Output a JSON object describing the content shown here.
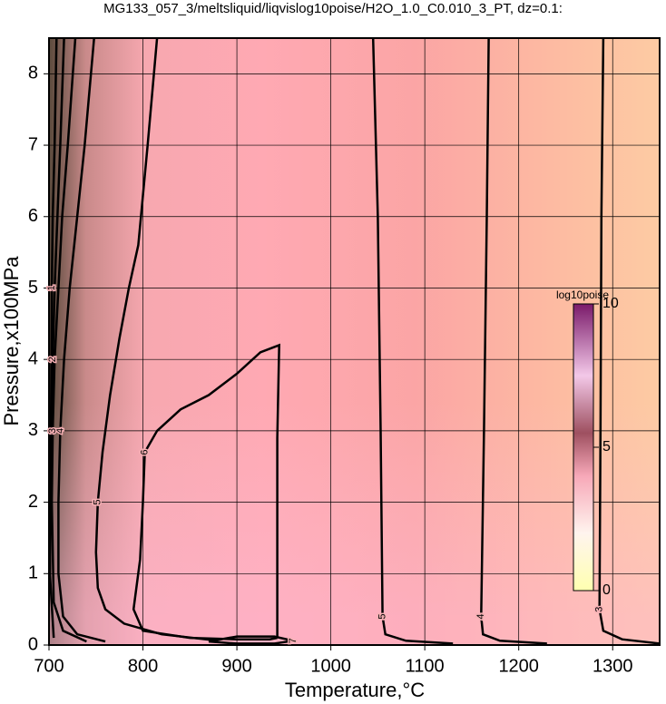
{
  "chart_data": {
    "type": "contour",
    "title": "MG133_057_3/meltsliquid/liqvislog10poise/H2O_1.0_C0.010_3_PT, dz=0.1:",
    "x_label": "Temperature,°C",
    "y_label": "Pressure,x100MPa",
    "xlim": [
      700,
      1350
    ],
    "ylim": [
      0,
      8.5
    ],
    "xticks": [
      700,
      800,
      900,
      1000,
      1100,
      1200,
      1300
    ],
    "yticks": [
      0,
      1,
      2,
      3,
      4,
      5,
      6,
      7,
      8
    ],
    "grid": true,
    "colorbar": {
      "label": "log10poise",
      "lim": [
        0,
        10
      ],
      "ticks": [
        0,
        5,
        10
      ]
    },
    "contours": [
      {
        "level": 3,
        "x": [
          1290,
          1288,
          1287,
          1286,
          1290,
          1310,
          1350
        ],
        "y": [
          8.5,
          6,
          3,
          0.5,
          0.2,
          0.08,
          0.02
        ]
      },
      {
        "level": 4,
        "x": [
          1168,
          1166,
          1163,
          1160,
          1162,
          1180,
          1230
        ],
        "y": [
          8.5,
          6,
          3,
          0.4,
          0.15,
          0.06,
          0.02
        ]
      },
      {
        "level": 5,
        "x": [
          1045,
          1050,
          1053,
          1055,
          1058,
          1080,
          1130
        ],
        "y": [
          8.5,
          6,
          3,
          0.4,
          0.15,
          0.06,
          0.02
        ]
      },
      {
        "level": 6,
        "x": [
          943,
          943,
          945,
          925,
          900,
          870,
          840,
          815,
          802,
          800,
          797,
          790,
          800,
          850,
          900,
          935,
          943
        ],
        "y": [
          0.1,
          2.9,
          4.2,
          4.1,
          3.8,
          3.5,
          3.3,
          3.0,
          2.7,
          2.0,
          1.2,
          0.5,
          0.2,
          0.1,
          0.08,
          0.08,
          0.1
        ]
      },
      {
        "level": 5,
        "x": [
          815,
          805,
          795,
          785,
          775,
          765,
          757,
          752,
          750,
          752,
          760,
          780,
          820,
          880
        ],
        "y": [
          8.5,
          7,
          5.6,
          5,
          4.3,
          3.5,
          2.7,
          2,
          1.3,
          0.8,
          0.5,
          0.3,
          0.15,
          0.06
        ]
      },
      {
        "level": 4,
        "x": [
          748,
          738,
          730,
          722,
          716,
          712,
          710,
          710,
          715,
          730,
          760
        ],
        "y": [
          8.5,
          7,
          6,
          5,
          4,
          3,
          2,
          1,
          0.4,
          0.15,
          0.05
        ]
      },
      {
        "level": 3,
        "x": [
          728,
          720,
          714,
          710,
          706,
          704,
          703,
          705,
          715,
          740
        ],
        "y": [
          8.5,
          7,
          6,
          5,
          4,
          3,
          2,
          0.6,
          0.2,
          0.05
        ]
      },
      {
        "level": 2,
        "x": [
          716,
          712,
          709,
          706,
          704,
          702,
          701,
          705
        ],
        "y": [
          8.5,
          7,
          6,
          5,
          4,
          3,
          1,
          0.1
        ]
      },
      {
        "level": 1,
        "x": [
          708,
          706,
          704,
          703,
          702,
          701
        ],
        "y": [
          8.5,
          7,
          6,
          5,
          3,
          1
        ]
      },
      {
        "level": 7,
        "x": [
          870,
          900,
          940,
          960,
          940,
          900,
          870
        ],
        "y": [
          0.05,
          0.12,
          0.12,
          0.06,
          0.02,
          0.02,
          0.05
        ]
      }
    ]
  }
}
